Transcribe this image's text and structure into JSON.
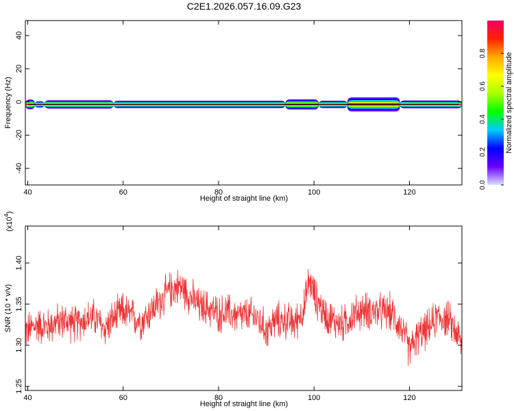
{
  "title": "C2E1.2026.057.16.09.G23",
  "chart_data": [
    {
      "type": "heatmap",
      "xlabel": "Height of straight line (km)",
      "ylabel": "Frequency (Hz)",
      "xlim": [
        39.5,
        131
      ],
      "ylim": [
        -50,
        49
      ],
      "x_ticks": [
        40,
        60,
        80,
        100,
        120
      ],
      "y_ticks": [
        -40,
        -20,
        0,
        20,
        40
      ],
      "grid": false,
      "band_center_hz": -1.5,
      "band_segments": [
        {
          "x0": 39.5,
          "x1": 41.5,
          "halfwidth_hz": 3.5,
          "peak": 0.9
        },
        {
          "x0": 41.5,
          "x1": 43.5,
          "halfwidth_hz": 2.2,
          "peak": 1.0
        },
        {
          "x0": 43.5,
          "x1": 58,
          "halfwidth_hz": 3.0,
          "peak": 1.0
        },
        {
          "x0": 58,
          "x1": 94,
          "halfwidth_hz": 2.6,
          "peak": 1.0
        },
        {
          "x0": 94,
          "x1": 101,
          "halfwidth_hz": 3.6,
          "peak": 1.0
        },
        {
          "x0": 101,
          "x1": 107,
          "halfwidth_hz": 2.6,
          "peak": 1.0
        },
        {
          "x0": 107,
          "x1": 118,
          "halfwidth_hz": 5.0,
          "peak": 1.0
        },
        {
          "x0": 118,
          "x1": 131,
          "halfwidth_hz": 2.8,
          "peak": 1.0
        }
      ]
    },
    {
      "type": "line",
      "xlabel": "Height of straight line (km)",
      "ylabel": "SNR (10 * v/v)",
      "y_multiplier_label": "(x10",
      "y_multiplier_exp": "4",
      "y_multiplier_close": ")",
      "xlim": [
        39.5,
        131
      ],
      "ylim": [
        1.245,
        1.445
      ],
      "x_ticks": [
        40,
        60,
        80,
        100,
        120
      ],
      "y_ticks": [
        "1.25",
        "1.30",
        "1.35",
        "1.40"
      ],
      "line_color": "#ee3333",
      "x": [
        40,
        42,
        44,
        46,
        48,
        50,
        52,
        54,
        56,
        58,
        60,
        62,
        64,
        66,
        68,
        70,
        72,
        74,
        76,
        78,
        80,
        82,
        84,
        86,
        88,
        90,
        92,
        94,
        96,
        98,
        99,
        100,
        102,
        104,
        106,
        108,
        110,
        112,
        114,
        116,
        118,
        120,
        122,
        124,
        126,
        128,
        130,
        131
      ],
      "y": [
        1.318,
        1.325,
        1.322,
        1.328,
        1.33,
        1.325,
        1.332,
        1.334,
        1.32,
        1.332,
        1.342,
        1.334,
        1.33,
        1.343,
        1.355,
        1.368,
        1.372,
        1.36,
        1.347,
        1.345,
        1.338,
        1.34,
        1.335,
        1.336,
        1.334,
        1.318,
        1.33,
        1.33,
        1.327,
        1.346,
        1.38,
        1.362,
        1.34,
        1.33,
        1.325,
        1.336,
        1.342,
        1.342,
        1.34,
        1.34,
        1.325,
        1.295,
        1.312,
        1.32,
        1.335,
        1.332,
        1.315,
        1.298
      ],
      "noise_amplitude": 0.02
    }
  ],
  "colorbar": {
    "label": "Normalized spectral amplitude",
    "range": [
      0,
      1
    ],
    "ticks": [
      "0.0",
      "0.2",
      "0.4",
      "0.6",
      "0.8"
    ],
    "stops": [
      "#ddddff",
      "#6a00ff",
      "#0000ff",
      "#00ccff",
      "#00ff00",
      "#aaff00",
      "#ffff00",
      "#ffaa00",
      "#ff2200",
      "#ee0066"
    ]
  }
}
